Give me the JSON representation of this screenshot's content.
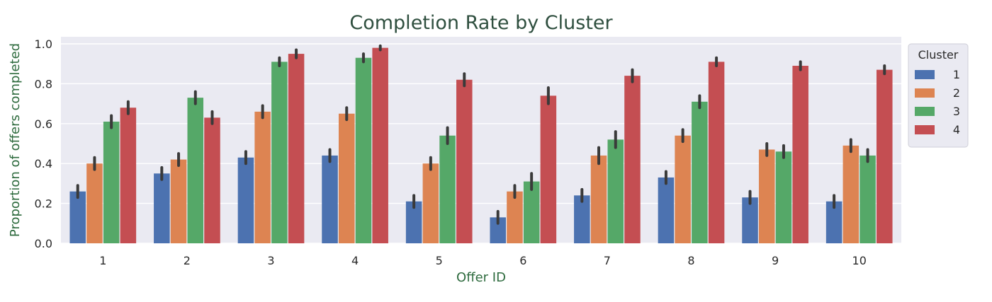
{
  "chart_data": {
    "type": "bar",
    "title": "Completion Rate by Cluster",
    "xlabel": "Offer ID",
    "ylabel": "Proportion of offers completed",
    "ylim": [
      0,
      1.0
    ],
    "yticks": [
      "0.0",
      "0.2",
      "0.4",
      "0.6",
      "0.8",
      "1.0"
    ],
    "grid": true,
    "categories": [
      "1",
      "2",
      "3",
      "4",
      "5",
      "6",
      "7",
      "8",
      "9",
      "10"
    ],
    "legend": {
      "title": "Cluster",
      "placement": "outside-right"
    },
    "series": [
      {
        "name": "1",
        "color": "#4c72b0",
        "values": [
          0.26,
          0.35,
          0.43,
          0.44,
          0.21,
          0.13,
          0.24,
          0.33,
          0.23,
          0.21
        ],
        "errors": [
          0.03,
          0.03,
          0.03,
          0.03,
          0.03,
          0.03,
          0.03,
          0.03,
          0.03,
          0.03
        ]
      },
      {
        "name": "2",
        "color": "#dd8452",
        "values": [
          0.4,
          0.42,
          0.66,
          0.65,
          0.4,
          0.26,
          0.44,
          0.54,
          0.47,
          0.49
        ],
        "errors": [
          0.03,
          0.03,
          0.03,
          0.03,
          0.03,
          0.03,
          0.04,
          0.03,
          0.03,
          0.03
        ]
      },
      {
        "name": "3",
        "color": "#55a868",
        "values": [
          0.61,
          0.73,
          0.91,
          0.93,
          0.54,
          0.31,
          0.52,
          0.71,
          0.46,
          0.44
        ],
        "errors": [
          0.03,
          0.03,
          0.02,
          0.02,
          0.04,
          0.04,
          0.04,
          0.03,
          0.03,
          0.03
        ]
      },
      {
        "name": "4",
        "color": "#c44e52",
        "values": [
          0.68,
          0.63,
          0.95,
          0.98,
          0.82,
          0.74,
          0.84,
          0.91,
          0.89,
          0.87
        ],
        "errors": [
          0.03,
          0.03,
          0.02,
          0.01,
          0.03,
          0.04,
          0.03,
          0.02,
          0.02,
          0.02
        ]
      }
    ]
  }
}
